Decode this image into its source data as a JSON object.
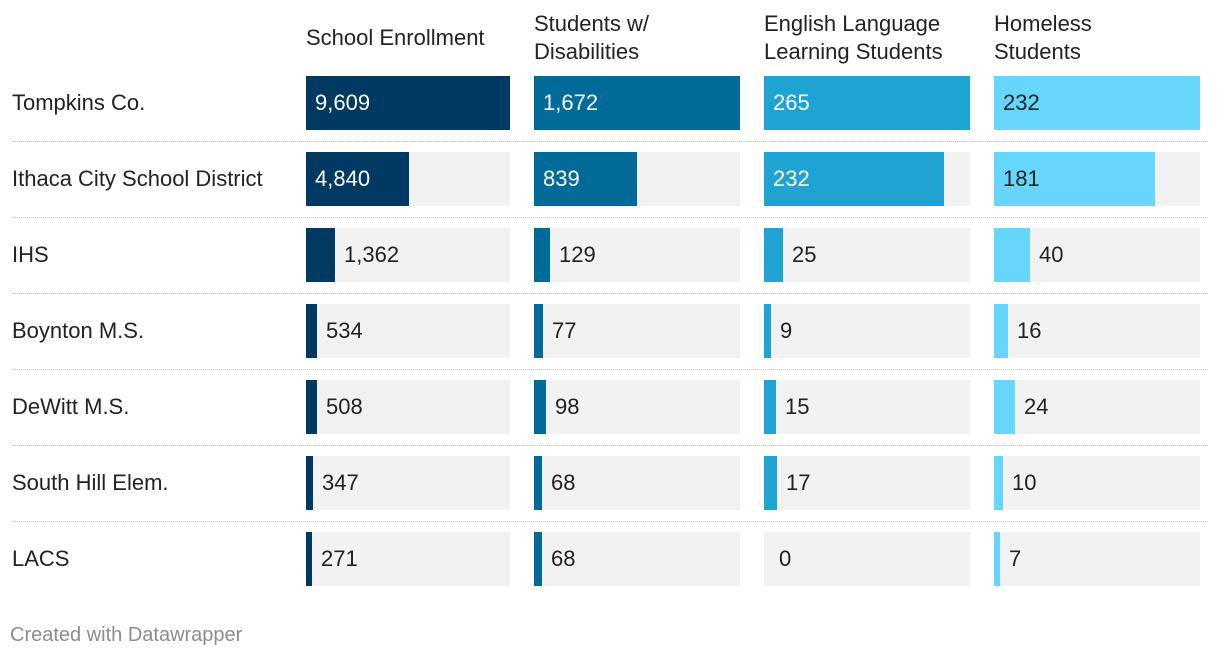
{
  "chart_data": {
    "type": "table",
    "title": "",
    "columns": [
      {
        "name": "School Enrollment",
        "max": 9609,
        "color": "#003a63",
        "text_in": "#ffffff"
      },
      {
        "name": "Students w/\nDisabilities",
        "max": 1672,
        "color": "#006b99",
        "text_in": "#ffffff"
      },
      {
        "name": "English Language\nLearning Students",
        "max": 265,
        "color": "#1ea3d2",
        "text_in": "#ffffff"
      },
      {
        "name": "Homeless\nStudents",
        "max": 232,
        "color": "#66d6fc",
        "text_in": "#222222"
      }
    ],
    "rows": [
      {
        "label": "Tompkins Co.",
        "values": [
          9609,
          1672,
          265,
          232
        ],
        "display": [
          "9,609",
          "1,672",
          "265",
          "232"
        ]
      },
      {
        "label": "Ithaca City School District",
        "values": [
          4840,
          839,
          232,
          181
        ],
        "display": [
          "4,840",
          "839",
          "232",
          "181"
        ]
      },
      {
        "label": "IHS",
        "values": [
          1362,
          129,
          25,
          40
        ],
        "display": [
          "1,362",
          "129",
          "25",
          "40"
        ]
      },
      {
        "label": "Boynton M.S.",
        "values": [
          534,
          77,
          9,
          16
        ],
        "display": [
          "534",
          "77",
          "9",
          "16"
        ]
      },
      {
        "label": "DeWitt M.S.",
        "values": [
          508,
          98,
          15,
          24
        ],
        "display": [
          "508",
          "98",
          "15",
          "24"
        ]
      },
      {
        "label": "South Hill Elem.",
        "values": [
          347,
          68,
          17,
          10
        ],
        "display": [
          "347",
          "68",
          "17",
          "10"
        ]
      },
      {
        "label": "LACS",
        "values": [
          271,
          68,
          0,
          7
        ],
        "display": [
          "271",
          "68",
          "0",
          "7"
        ]
      }
    ]
  },
  "footer": {
    "credit": "Created with Datawrapper"
  }
}
